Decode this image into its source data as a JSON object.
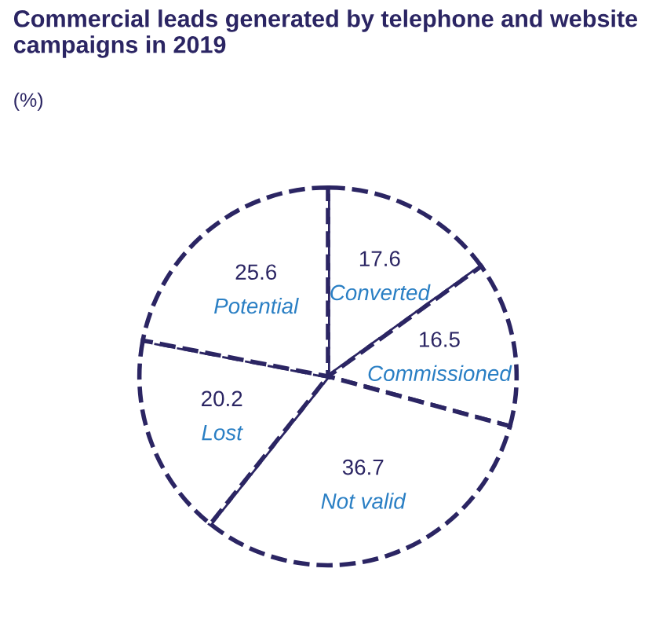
{
  "chart_data": {
    "type": "pie",
    "title": "Commercial leads generated by telephone and website campaigns in 2019",
    "subtitle": "(%)",
    "categories": [
      "Converted",
      "Commissioned",
      "Not valid",
      "Lost",
      "Potential"
    ],
    "values": [
      17.6,
      16.5,
      36.7,
      20.2,
      25.6
    ],
    "colors": [
      "#ffffff",
      "#ffffff",
      "#ffffff",
      "#ffffff",
      "#ffffff"
    ],
    "data_labels": true
  }
}
